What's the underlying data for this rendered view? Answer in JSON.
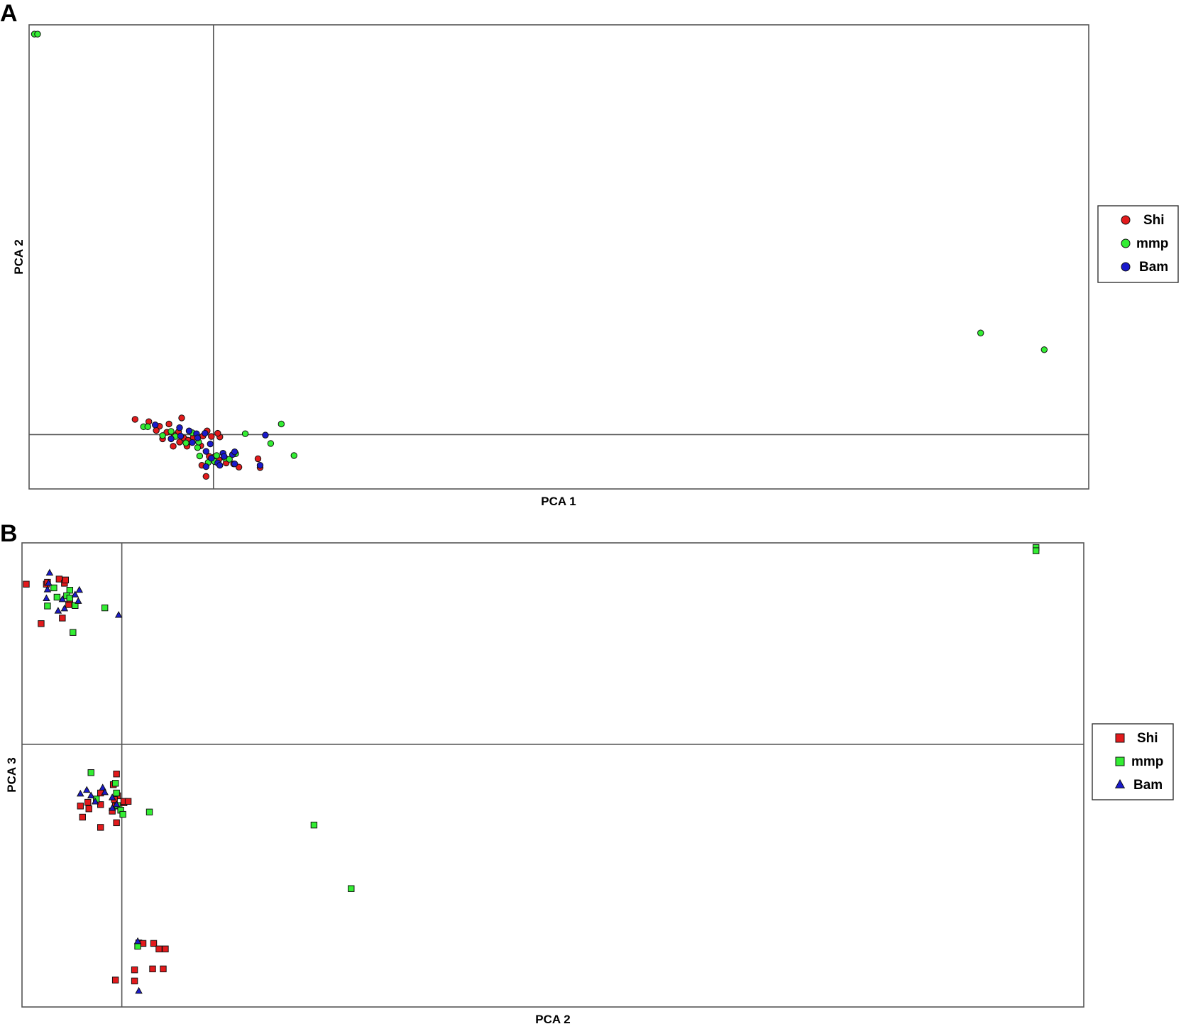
{
  "chart_data": [
    {
      "type": "scatter",
      "panel": "A",
      "xlabel": "PCA 1",
      "ylabel": "PCA 2",
      "marker": "circle",
      "xlim": [
        0,
        100
      ],
      "ylim": [
        0,
        100
      ],
      "zero_lines": {
        "x": 17.4,
        "y": 11.7
      },
      "legend_position": "right",
      "colors": {
        "Shi": "#e31a1c",
        "mmp": "#33ee33",
        "Bam": "#1a1acc"
      },
      "series": [
        {
          "name": "Shi",
          "points": [
            [
              10.0,
              15.0
            ],
            [
              11.3,
              14.5
            ],
            [
              13.2,
              14.0
            ],
            [
              14.4,
              15.3
            ],
            [
              12.3,
              13.5
            ],
            [
              12.0,
              12.6
            ],
            [
              14.1,
              12.3
            ],
            [
              15.7,
              11.8
            ],
            [
              16.4,
              11.4
            ],
            [
              15.5,
              11.1
            ],
            [
              17.2,
              11.3
            ],
            [
              18.0,
              11.2
            ],
            [
              13.7,
              11.6
            ],
            [
              14.6,
              11.0
            ],
            [
              15.0,
              10.5
            ],
            [
              14.2,
              10.1
            ],
            [
              13.6,
              9.2
            ],
            [
              14.9,
              9.2
            ],
            [
              16.2,
              9.3
            ],
            [
              17.0,
              7.0
            ],
            [
              17.5,
              6.9
            ],
            [
              17.9,
              6.3
            ],
            [
              18.6,
              5.6
            ],
            [
              19.3,
              5.4
            ],
            [
              21.6,
              6.5
            ],
            [
              19.8,
              4.7
            ],
            [
              21.8,
              4.6
            ],
            [
              16.3,
              5.1
            ],
            [
              16.7,
              2.7
            ],
            [
              13.0,
              12.2
            ],
            [
              16.8,
              12.5
            ],
            [
              17.8,
              12.0
            ],
            [
              12.6,
              10.8
            ]
          ]
        },
        {
          "name": "mmp",
          "points": [
            [
              0.5,
              98.0
            ],
            [
              0.8,
              98.0
            ],
            [
              89.8,
              33.6
            ],
            [
              95.8,
              30.0
            ],
            [
              10.8,
              13.4
            ],
            [
              11.2,
              13.4
            ],
            [
              12.6,
              11.5
            ],
            [
              13.4,
              12.4
            ],
            [
              13.8,
              11.3
            ],
            [
              14.8,
              9.9
            ],
            [
              15.9,
              8.9
            ],
            [
              16.1,
              7.1
            ],
            [
              16.9,
              5.7
            ],
            [
              17.5,
              5.9
            ],
            [
              17.7,
              7.2
            ],
            [
              18.5,
              6.6
            ],
            [
              18.9,
              6.4
            ],
            [
              19.5,
              7.6
            ],
            [
              20.4,
              11.9
            ],
            [
              22.8,
              9.8
            ],
            [
              23.8,
              14.0
            ],
            [
              25.0,
              7.2
            ],
            [
              16.0,
              10.1
            ],
            [
              15.4,
              12.1
            ]
          ]
        },
        {
          "name": "Bam",
          "points": [
            [
              11.9,
              13.8
            ],
            [
              14.2,
              13.2
            ],
            [
              15.1,
              12.5
            ],
            [
              15.8,
              11.9
            ],
            [
              16.6,
              12.0
            ],
            [
              13.4,
              10.8
            ],
            [
              15.4,
              10.0
            ],
            [
              15.9,
              11.0
            ],
            [
              17.1,
              9.7
            ],
            [
              18.3,
              7.7
            ],
            [
              19.2,
              7.4
            ],
            [
              19.4,
              8.0
            ],
            [
              18.4,
              7.0
            ],
            [
              17.2,
              6.6
            ],
            [
              17.8,
              5.6
            ],
            [
              16.7,
              4.8
            ],
            [
              18.0,
              5.1
            ],
            [
              19.4,
              5.4
            ],
            [
              21.8,
              5.1
            ],
            [
              22.3,
              11.6
            ],
            [
              16.7,
              8.1
            ],
            [
              14.3,
              11.4
            ]
          ]
        }
      ]
    },
    {
      "type": "scatter",
      "panel": "B",
      "xlabel": "PCA 2",
      "ylabel": "PCA 3",
      "marker": [
        "square",
        "square",
        "triangle"
      ],
      "xlim": [
        0,
        100
      ],
      "ylim": [
        0,
        100
      ],
      "zero_lines": {
        "x": 9.4,
        "y": 56.6
      },
      "legend_position": "right",
      "colors": {
        "Shi": "#e31a1c",
        "mmp": "#33ee33",
        "Bam": "#1a1acc"
      },
      "series": [
        {
          "name": "Shi",
          "points": [
            [
              0.4,
              91.1
            ],
            [
              2.3,
              91.1
            ],
            [
              3.5,
              92.2
            ],
            [
              4.0,
              91.3
            ],
            [
              4.1,
              92.0
            ],
            [
              1.8,
              82.6
            ],
            [
              3.8,
              83.8
            ],
            [
              4.4,
              86.7
            ],
            [
              4.5,
              87.8
            ],
            [
              8.9,
              50.2
            ],
            [
              8.6,
              47.9
            ],
            [
              9.0,
              45.5
            ],
            [
              9.6,
              44.0
            ],
            [
              7.4,
              46.1
            ],
            [
              8.7,
              44.7
            ],
            [
              6.2,
              44.1
            ],
            [
              7.4,
              43.6
            ],
            [
              8.5,
              42.2
            ],
            [
              5.7,
              40.9
            ],
            [
              7.4,
              38.7
            ],
            [
              8.9,
              39.7
            ],
            [
              5.5,
              43.3
            ],
            [
              6.3,
              42.7
            ],
            [
              8.8,
              43.3
            ],
            [
              9.6,
              44.3
            ],
            [
              10.0,
              44.3
            ],
            [
              11.0,
              13.8
            ],
            [
              11.4,
              13.7
            ],
            [
              12.4,
              13.7
            ],
            [
              12.9,
              12.5
            ],
            [
              13.5,
              12.5
            ],
            [
              13.3,
              8.2
            ],
            [
              12.3,
              8.2
            ],
            [
              10.6,
              8.0
            ],
            [
              8.8,
              5.8
            ],
            [
              10.6,
              5.6
            ],
            [
              2.4,
              91.5
            ]
          ]
        },
        {
          "name": "mmp",
          "points": [
            [
              95.5,
              99.0
            ],
            [
              95.5,
              98.3
            ],
            [
              3.0,
              90.3
            ],
            [
              4.5,
              89.8
            ],
            [
              4.2,
              88.6
            ],
            [
              3.3,
              88.3
            ],
            [
              4.5,
              88.1
            ],
            [
              2.4,
              86.4
            ],
            [
              5.0,
              86.5
            ],
            [
              7.8,
              86.0
            ],
            [
              4.8,
              80.7
            ],
            [
              6.5,
              50.5
            ],
            [
              8.8,
              48.2
            ],
            [
              8.9,
              46.1
            ],
            [
              7.0,
              44.8
            ],
            [
              9.0,
              43.4
            ],
            [
              9.3,
              42.4
            ],
            [
              9.5,
              41.5
            ],
            [
              12.0,
              42.0
            ],
            [
              27.5,
              39.2
            ],
            [
              31.0,
              25.5
            ],
            [
              10.9,
              13.1
            ]
          ]
        },
        {
          "name": "Bam",
          "points": [
            [
              2.6,
              93.5
            ],
            [
              2.5,
              91.3
            ],
            [
              2.4,
              89.9
            ],
            [
              2.3,
              88.0
            ],
            [
              3.8,
              87.8
            ],
            [
              5.0,
              88.8
            ],
            [
              5.4,
              89.8
            ],
            [
              5.3,
              87.4
            ],
            [
              4.0,
              85.8
            ],
            [
              3.4,
              85.3
            ],
            [
              9.1,
              84.4
            ],
            [
              5.5,
              45.9
            ],
            [
              6.1,
              46.7
            ],
            [
              6.5,
              45.5
            ],
            [
              7.6,
              47.2
            ],
            [
              7.8,
              46.2
            ],
            [
              8.5,
              45.1
            ],
            [
              8.9,
              43.6
            ],
            [
              6.9,
              44.2
            ],
            [
              8.5,
              42.8
            ],
            [
              10.9,
              14.1
            ],
            [
              11.0,
              3.4
            ]
          ]
        }
      ]
    }
  ],
  "panels": {
    "A": {
      "letter": "A",
      "xlabel": "PCA 1",
      "ylabel": "PCA 2"
    },
    "B": {
      "letter": "B",
      "xlabel": "PCA 2",
      "ylabel": "PCA 3"
    }
  },
  "legends": {
    "A": [
      "Shi",
      "mmp",
      "Bam"
    ],
    "B": [
      "Shi",
      "mmp",
      "Bam"
    ]
  }
}
